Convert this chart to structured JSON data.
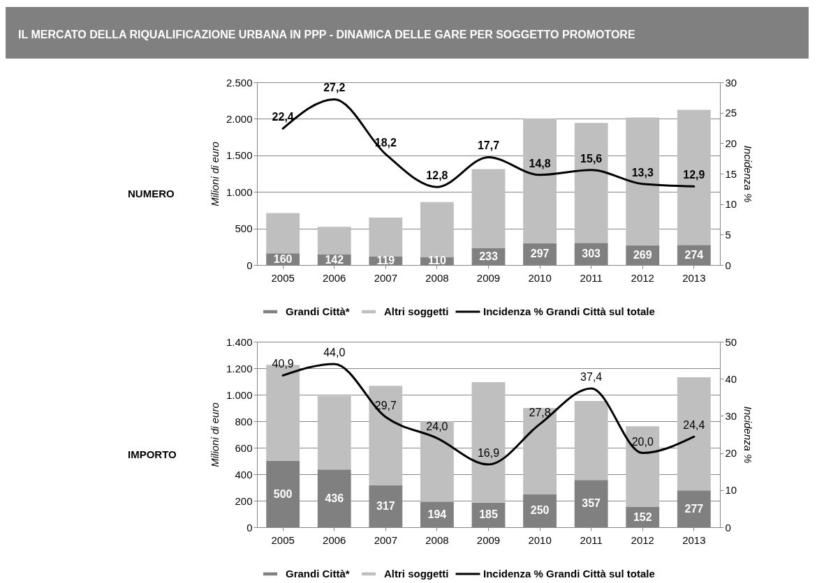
{
  "chart_data": [
    {
      "type": "bar",
      "stacked": true,
      "title": "IL MERCATO DELLA RIQUALIFICAZIONE URBANA IN PPP - DINAMICA DELLE GARE PER SOGGETTO PROMOTORE",
      "subtitle": "NUMERO",
      "ylabel": "Milioni di euro",
      "y2label": "Incidenza %",
      "categories": [
        "2005",
        "2006",
        "2007",
        "2008",
        "2009",
        "2010",
        "2011",
        "2012",
        "2013"
      ],
      "series": [
        {
          "name": "Grandi Città*",
          "color": "#808080",
          "values": [
            160,
            142,
            119,
            110,
            233,
            297,
            303,
            269,
            274
          ],
          "value_labels": [
            "160",
            "142",
            "119",
            "110",
            "233",
            "297",
            "303",
            "269",
            "274"
          ]
        },
        {
          "name": "Altri soggetti",
          "color": "#bfbfbf",
          "values": [
            550,
            380,
            530,
            750,
            1080,
            1710,
            1640,
            1750,
            1850
          ]
        },
        {
          "name": "Incidenza % Grandi Città sul totale",
          "type": "line",
          "axis": "y2",
          "color": "#000000",
          "values": [
            22.4,
            27.2,
            18.2,
            12.8,
            17.7,
            14.8,
            15.6,
            13.3,
            12.9
          ],
          "value_labels": [
            "22,4",
            "27,2",
            "18,2",
            "12,8",
            "17,7",
            "14,8",
            "15,6",
            "13,3",
            "12,9"
          ]
        }
      ],
      "ylim": [
        0,
        2500
      ],
      "yticks": [
        0,
        500,
        {
          "value": 1000,
          "label": "1.000"
        },
        {
          "value": 1500,
          "label": "1.500"
        },
        {
          "value": 2000,
          "label": "2.000"
        },
        {
          "value": 2500,
          "label": "2.500"
        }
      ],
      "y2lim": [
        0,
        30
      ],
      "y2ticks": [
        0,
        5,
        10,
        15,
        20,
        25,
        30
      ],
      "grid": "y",
      "legend": "bottom"
    },
    {
      "type": "bar",
      "stacked": true,
      "subtitle": "IMPORTO",
      "ylabel": "Milioni di euro",
      "y2label": "Incidenza %",
      "categories": [
        "2005",
        "2006",
        "2007",
        "2008",
        "2009",
        "2010",
        "2011",
        "2012",
        "2013"
      ],
      "series": [
        {
          "name": "Grandi Città*",
          "color": "#808080",
          "values": [
            500,
            436,
            317,
            194,
            185,
            250,
            357,
            152,
            277
          ],
          "value_labels": [
            "500",
            "436",
            "317",
            "194",
            "185",
            "250",
            "357",
            "152",
            "277"
          ]
        },
        {
          "name": "Altri soggetti",
          "color": "#bfbfbf",
          "values": [
            725,
            555,
            750,
            605,
            910,
            650,
            595,
            610,
            855
          ]
        },
        {
          "name": "Incidenza % Grandi Città sul totale",
          "type": "line",
          "axis": "y2",
          "color": "#000000",
          "values": [
            40.9,
            44.0,
            29.7,
            24.0,
            16.9,
            27.8,
            37.4,
            20.0,
            24.4
          ],
          "value_labels": [
            "40,9",
            "44,0",
            "29,7",
            "24,0",
            "16,9",
            "27,8",
            "37,4",
            "20,0",
            "24,4"
          ]
        }
      ],
      "ylim": [
        0,
        1400
      ],
      "yticks": [
        0,
        200,
        400,
        600,
        800,
        {
          "value": 1000,
          "label": "1.000"
        },
        {
          "value": 1200,
          "label": "1.200"
        },
        {
          "value": 1400,
          "label": "1.400"
        }
      ],
      "y2lim": [
        0,
        50
      ],
      "y2ticks": [
        0,
        10,
        20,
        30,
        40,
        50
      ],
      "grid": "y",
      "legend": "bottom"
    }
  ]
}
